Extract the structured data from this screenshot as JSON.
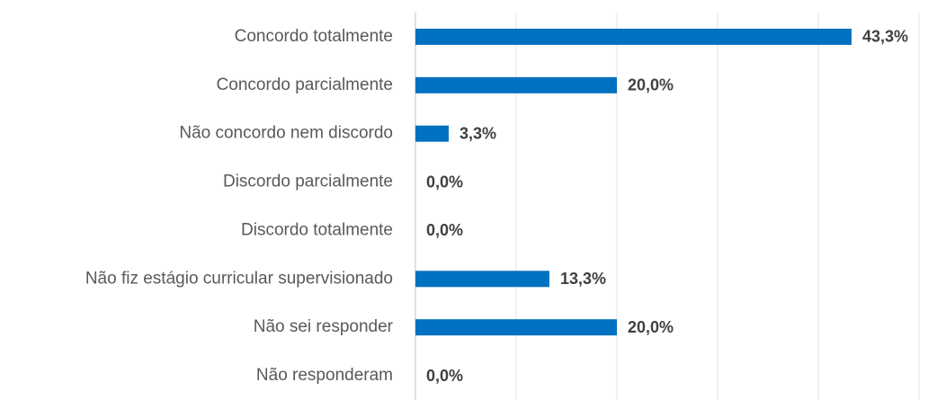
{
  "chart_data": {
    "type": "bar",
    "orientation": "horizontal",
    "categories": [
      "Concordo totalmente",
      "Concordo parcialmente",
      "Não concordo nem discordo",
      "Discordo parcialmente",
      "Discordo totalmente",
      "Não fiz estágio curricular supervisionado",
      "Não sei responder",
      "Não responderam"
    ],
    "values": [
      43.3,
      20.0,
      3.3,
      0.0,
      0.0,
      13.3,
      20.0,
      0.0
    ],
    "value_labels": [
      "43,3%",
      "20,0%",
      "3,3%",
      "0,0%",
      "0,0%",
      "13,3%",
      "20,0%",
      "0,0%"
    ],
    "color": "#0070c0",
    "xlim": [
      0,
      50
    ],
    "xticks": [
      0,
      10,
      20,
      30,
      40,
      50
    ],
    "grid": true
  }
}
